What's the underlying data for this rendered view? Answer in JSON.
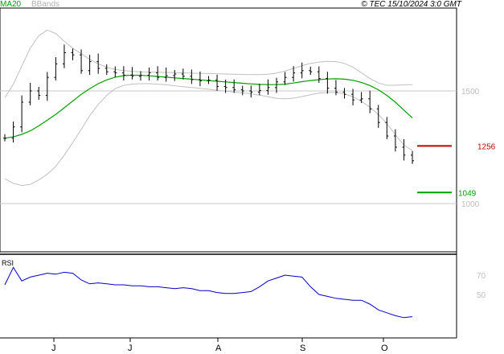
{
  "header": {
    "ma_label": "MA20",
    "bbands_label": "BBands",
    "copyright": "© TEC 15/10/2024 3:0 GMT"
  },
  "colors": {
    "ma": "#00a000",
    "bbands": "#c0c0c0",
    "price": "#000000",
    "rsi": "#0000c8",
    "resistance": "#c00000",
    "support": "#00a000",
    "grid": "#c8c8c8"
  },
  "chart_data": [
    {
      "type": "line",
      "panel": "price",
      "title": "",
      "price_axis": {
        "range": [
          850,
          1850
        ],
        "ticks": [
          {
            "value": 1500,
            "label": "1500"
          },
          {
            "value": 1000,
            "label": "1000"
          }
        ]
      },
      "x_labels": [
        "J",
        "J",
        "A",
        "S",
        "O"
      ],
      "levels": [
        {
          "name": "resistance",
          "value": 1256,
          "label": "1256"
        },
        {
          "name": "support",
          "value": 1049,
          "label": "1049"
        }
      ],
      "series": [
        {
          "name": "MA20",
          "values": [
            1290,
            1296,
            1307,
            1323,
            1345,
            1370,
            1396,
            1425,
            1455,
            1485,
            1510,
            1532,
            1549,
            1561,
            1568,
            1570,
            1569,
            1567,
            1564,
            1561,
            1558,
            1555,
            1552,
            1549,
            1546,
            1543,
            1540,
            1537,
            1534,
            1531,
            1529,
            1528,
            1528,
            1530,
            1535,
            1541,
            1546,
            1550,
            1553,
            1554,
            1552,
            1547,
            1538,
            1524,
            1505,
            1480,
            1450,
            1415,
            1380
          ]
        },
        {
          "name": "BBands upper",
          "values": [
            1470,
            1530,
            1610,
            1690,
            1745,
            1770,
            1755,
            1720,
            1690,
            1665,
            1640,
            1620,
            1605,
            1595,
            1590,
            1587,
            1585,
            1584,
            1583,
            1582,
            1581,
            1580,
            1579,
            1578,
            1577,
            1576,
            1575,
            1574,
            1573,
            1572,
            1572,
            1574,
            1579,
            1588,
            1600,
            1612,
            1622,
            1628,
            1631,
            1630,
            1622,
            1605,
            1580,
            1555,
            1535,
            1525,
            1525,
            1527,
            1528
          ]
        },
        {
          "name": "BBands lower",
          "values": [
            1110,
            1090,
            1080,
            1085,
            1105,
            1130,
            1165,
            1215,
            1270,
            1330,
            1390,
            1440,
            1480,
            1510,
            1525,
            1530,
            1532,
            1532,
            1530,
            1527,
            1523,
            1519,
            1515,
            1511,
            1507,
            1503,
            1499,
            1495,
            1491,
            1487,
            1481,
            1474,
            1467,
            1465,
            1468,
            1475,
            1483,
            1490,
            1493,
            1493,
            1487,
            1474,
            1454,
            1428,
            1395,
            1355,
            1305,
            1260,
            1235
          ]
        },
        {
          "name": "Close",
          "values": [
            1290,
            1340,
            1450,
            1500,
            1480,
            1560,
            1620,
            1670,
            1660,
            1590,
            1630,
            1600,
            1585,
            1580,
            1570,
            1565,
            1570,
            1580,
            1560,
            1568,
            1575,
            1565,
            1550,
            1545,
            1548,
            1520,
            1515,
            1505,
            1500,
            1495,
            1502,
            1515,
            1540,
            1560,
            1580,
            1590,
            1585,
            1555,
            1512,
            1495,
            1485,
            1460,
            1465,
            1420,
            1360,
            1300,
            1250,
            1215,
            1190
          ]
        }
      ]
    },
    {
      "type": "line",
      "panel": "rsi",
      "title": "RSI",
      "rsi_axis": {
        "range": [
          20,
          85
        ],
        "ticks": [
          {
            "value": 70,
            "label": "70"
          },
          {
            "value": 50,
            "label": "50"
          }
        ]
      },
      "series": [
        {
          "name": "RSI",
          "values": [
            60,
            78,
            64,
            68,
            70,
            72,
            71,
            73,
            72,
            65,
            61,
            62,
            61,
            60,
            60,
            59,
            59,
            58,
            58,
            57,
            56,
            57,
            56,
            54,
            54,
            52,
            51,
            51,
            52,
            53,
            58,
            64,
            67,
            70,
            69,
            68,
            58,
            50,
            48,
            46,
            45,
            44,
            44,
            40,
            34,
            31,
            28,
            26,
            27
          ]
        }
      ]
    }
  ]
}
